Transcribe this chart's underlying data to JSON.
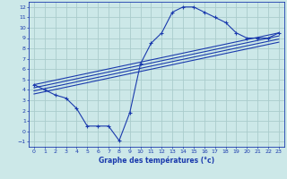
{
  "xlabel": "Graphe des températures (°c)",
  "bg_color": "#cce8e8",
  "grid_color": "#aacccc",
  "line_color": "#1a3aad",
  "xlim": [
    -0.5,
    23.5
  ],
  "ylim": [
    -1.5,
    12.5
  ],
  "xticks": [
    0,
    1,
    2,
    3,
    4,
    5,
    6,
    7,
    8,
    9,
    10,
    11,
    12,
    13,
    14,
    15,
    16,
    17,
    18,
    19,
    20,
    21,
    22,
    23
  ],
  "yticks": [
    -1,
    0,
    1,
    2,
    3,
    4,
    5,
    6,
    7,
    8,
    9,
    10,
    11,
    12
  ],
  "series": [
    {
      "x": [
        0,
        1,
        2,
        3,
        4,
        5,
        6,
        7,
        8,
        9,
        10,
        11,
        12,
        13,
        14,
        15,
        16,
        17,
        18,
        19,
        20,
        21,
        22,
        23
      ],
      "y": [
        4.5,
        4.0,
        3.5,
        3.2,
        2.2,
        0.5,
        0.5,
        0.5,
        -0.9,
        1.8,
        6.5,
        8.5,
        9.5,
        11.5,
        12.0,
        12.0,
        11.5,
        11.0,
        10.5,
        9.5,
        9.0,
        9.0,
        9.0,
        9.5
      ],
      "with_markers": true
    },
    {
      "x": [
        0,
        23
      ],
      "y": [
        4.5,
        9.5
      ],
      "with_markers": false
    },
    {
      "x": [
        0,
        23
      ],
      "y": [
        4.2,
        9.2
      ],
      "with_markers": false
    },
    {
      "x": [
        0,
        23
      ],
      "y": [
        3.9,
        8.9
      ],
      "with_markers": false
    },
    {
      "x": [
        0,
        23
      ],
      "y": [
        3.6,
        8.6
      ],
      "with_markers": false
    }
  ]
}
